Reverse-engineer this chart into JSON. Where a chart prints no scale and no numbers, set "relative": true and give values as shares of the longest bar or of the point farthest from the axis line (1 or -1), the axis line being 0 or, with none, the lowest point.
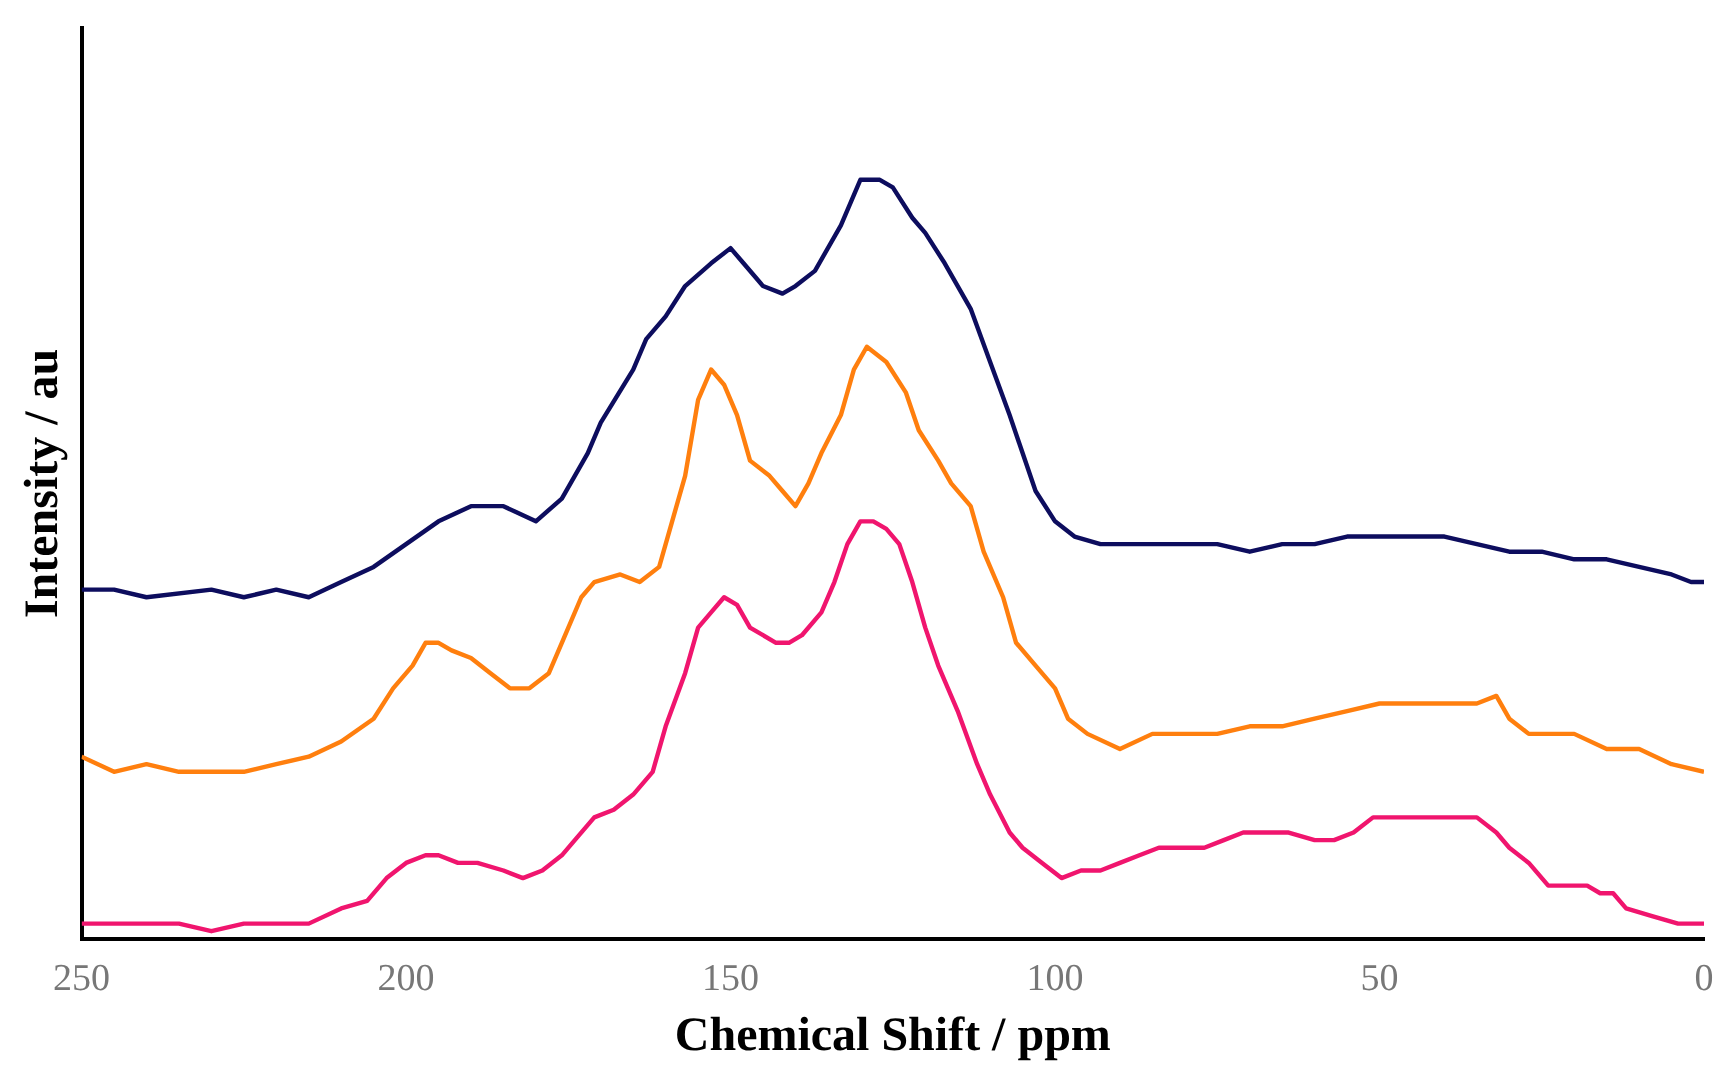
{
  "chart_data": {
    "type": "line",
    "xlabel": "Chemical Shift / ppm",
    "ylabel": "Intensity / au",
    "relative": true,
    "xlim": [
      250,
      0
    ],
    "xticks": [
      250,
      200,
      150,
      100,
      50,
      0
    ],
    "grid": false,
    "legend": false,
    "marker": "none",
    "line_style": "solid",
    "series": [
      {
        "color": "#0d0d5e",
        "x": [
          250,
          245,
          240,
          230,
          225,
          220,
          215,
          210,
          205,
          200,
          195,
          190,
          185,
          180,
          176,
          172,
          170,
          165,
          163,
          160,
          157,
          153,
          150,
          148,
          145,
          142,
          140,
          137,
          133,
          130,
          127,
          125,
          122,
          120,
          117,
          113,
          110,
          107,
          105,
          103,
          100,
          97,
          93,
          90,
          85,
          80,
          75,
          70,
          65,
          60,
          55,
          50,
          45,
          40,
          35,
          30,
          25,
          20,
          15,
          10,
          5,
          2,
          0
        ],
        "values": [
          0.46,
          0.46,
          0.45,
          0.46,
          0.45,
          0.46,
          0.45,
          0.47,
          0.49,
          0.52,
          0.55,
          0.57,
          0.57,
          0.55,
          0.58,
          0.64,
          0.68,
          0.75,
          0.79,
          0.82,
          0.86,
          0.89,
          0.91,
          0.89,
          0.86,
          0.85,
          0.86,
          0.88,
          0.94,
          1.0,
          1.0,
          0.99,
          0.95,
          0.93,
          0.89,
          0.83,
          0.76,
          0.69,
          0.64,
          0.59,
          0.55,
          0.53,
          0.52,
          0.52,
          0.52,
          0.52,
          0.52,
          0.51,
          0.52,
          0.52,
          0.53,
          0.53,
          0.53,
          0.53,
          0.52,
          0.51,
          0.51,
          0.5,
          0.5,
          0.49,
          0.48,
          0.47,
          0.47
        ]
      },
      {
        "color": "#ff7f0e",
        "x": [
          250,
          245,
          240,
          235,
          230,
          225,
          220,
          215,
          210,
          205,
          202,
          199,
          197,
          195,
          193,
          190,
          187,
          184,
          181,
          178,
          176,
          173,
          171,
          167,
          164,
          161,
          159,
          157,
          155,
          153,
          151,
          149,
          147,
          144,
          142,
          140,
          138,
          136,
          133,
          131,
          129,
          126,
          123,
          121,
          118,
          116,
          113,
          111,
          108,
          106,
          103,
          100,
          98,
          95,
          90,
          85,
          80,
          75,
          70,
          65,
          60,
          55,
          50,
          45,
          40,
          35,
          32,
          30,
          27,
          24,
          20,
          15,
          10,
          5,
          0
        ],
        "values": [
          0.24,
          0.22,
          0.23,
          0.22,
          0.22,
          0.22,
          0.23,
          0.24,
          0.26,
          0.29,
          0.33,
          0.36,
          0.39,
          0.39,
          0.38,
          0.37,
          0.35,
          0.33,
          0.33,
          0.35,
          0.39,
          0.45,
          0.47,
          0.48,
          0.47,
          0.49,
          0.55,
          0.61,
          0.71,
          0.75,
          0.73,
          0.69,
          0.63,
          0.61,
          0.59,
          0.57,
          0.6,
          0.64,
          0.69,
          0.75,
          0.78,
          0.76,
          0.72,
          0.67,
          0.63,
          0.6,
          0.57,
          0.51,
          0.45,
          0.39,
          0.36,
          0.33,
          0.29,
          0.27,
          0.25,
          0.27,
          0.27,
          0.27,
          0.28,
          0.28,
          0.29,
          0.3,
          0.31,
          0.31,
          0.31,
          0.31,
          0.32,
          0.29,
          0.27,
          0.27,
          0.27,
          0.25,
          0.25,
          0.23,
          0.22
        ]
      },
      {
        "color": "#f0156e",
        "x": [
          250,
          245,
          240,
          235,
          230,
          225,
          220,
          215,
          210,
          206,
          203,
          200,
          197,
          195,
          192,
          189,
          185,
          182,
          179,
          176,
          174,
          171,
          168,
          165,
          162,
          160,
          157,
          155,
          153,
          151,
          149,
          147,
          145,
          143,
          141,
          139,
          136,
          134,
          132,
          130,
          128,
          126,
          124,
          122,
          120,
          118,
          115,
          112,
          110,
          107,
          105,
          102,
          99,
          96,
          93,
          90,
          87,
          84,
          80,
          77,
          74,
          71,
          68,
          64,
          60,
          57,
          54,
          51,
          48,
          45,
          40,
          35,
          32,
          30,
          27,
          24,
          21,
          18,
          16,
          14,
          12,
          8,
          4,
          0
        ],
        "values": [
          0.02,
          0.02,
          0.02,
          0.02,
          0.01,
          0.02,
          0.02,
          0.02,
          0.04,
          0.05,
          0.08,
          0.1,
          0.11,
          0.11,
          0.1,
          0.1,
          0.09,
          0.08,
          0.09,
          0.11,
          0.13,
          0.16,
          0.17,
          0.19,
          0.22,
          0.28,
          0.35,
          0.41,
          0.43,
          0.45,
          0.44,
          0.41,
          0.4,
          0.39,
          0.39,
          0.4,
          0.43,
          0.47,
          0.52,
          0.55,
          0.55,
          0.54,
          0.52,
          0.47,
          0.41,
          0.36,
          0.3,
          0.23,
          0.19,
          0.14,
          0.12,
          0.1,
          0.08,
          0.09,
          0.09,
          0.1,
          0.11,
          0.12,
          0.12,
          0.12,
          0.13,
          0.14,
          0.14,
          0.14,
          0.13,
          0.13,
          0.14,
          0.16,
          0.16,
          0.16,
          0.16,
          0.16,
          0.14,
          0.12,
          0.1,
          0.07,
          0.07,
          0.07,
          0.06,
          0.06,
          0.04,
          0.03,
          0.02,
          0.02
        ]
      }
    ]
  }
}
